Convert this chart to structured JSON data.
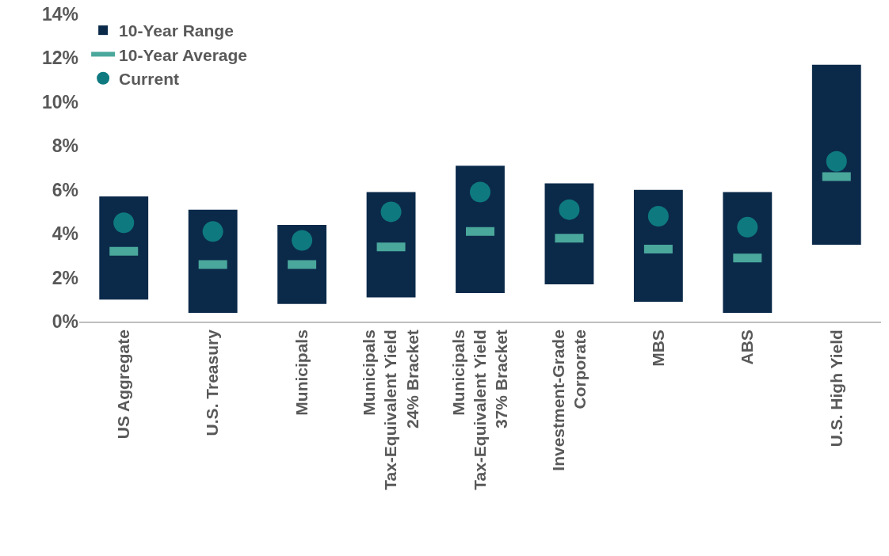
{
  "chart_data": {
    "type": "bar",
    "categories": [
      "US Aggregate",
      "U.S. Treasury",
      "Municipals",
      "Municipals\nTax-Equivalent Yield\n24% Bracket",
      "Municipals\nTax-Equivalent Yield\n37% Bracket",
      "Investment-Grade\nCorporate",
      "MBS",
      "ABS",
      "U.S. High Yield"
    ],
    "series": [
      {
        "name": "10-Year Range",
        "color": "#0b2a4a",
        "base": [
          1.0,
          0.4,
          0.8,
          1.1,
          1.3,
          1.7,
          0.9,
          0.4,
          3.5
        ],
        "values": [
          4.7,
          4.7,
          3.6,
          4.8,
          5.8,
          4.6,
          5.1,
          5.5,
          8.2
        ]
      },
      {
        "name": "10-Year Average",
        "type": "scatter",
        "color": "#4aa79b",
        "values": [
          3.2,
          2.6,
          2.6,
          3.4,
          4.1,
          3.8,
          3.3,
          2.9,
          6.6
        ]
      },
      {
        "name": "Current",
        "type": "scatter",
        "marker": "circle",
        "color": "#0e7a80",
        "values": [
          4.5,
          4.1,
          3.7,
          5.0,
          5.9,
          5.1,
          4.8,
          4.3,
          7.3
        ]
      }
    ],
    "ylim": [
      0,
      14
    ],
    "yticks": [
      {
        "value": 0,
        "label": "0%"
      },
      {
        "value": 2,
        "label": "2%"
      },
      {
        "value": 4,
        "label": "4%"
      },
      {
        "value": 6,
        "label": "6%"
      },
      {
        "value": 8,
        "label": "8%"
      },
      {
        "value": 10,
        "label": "10%"
      },
      {
        "value": 12,
        "label": "12%"
      },
      {
        "value": 14,
        "label": "14%"
      }
    ],
    "grid": false,
    "legend": "top left"
  }
}
